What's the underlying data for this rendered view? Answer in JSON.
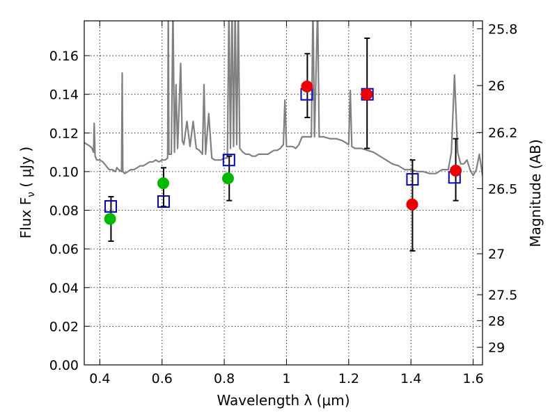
{
  "chart_data": {
    "type": "scatter",
    "xlabel": "Wavelength  λ (μm)",
    "ylabel": "Flux  F",
    "ylabel_sub": "ν",
    "ylabel_unit": "  ( μJy )",
    "y2label": "Magnitude (AB)",
    "xlim": [
      0.35,
      1.63
    ],
    "ylim": [
      0.0,
      0.178
    ],
    "xticks": [
      0.4,
      0.6,
      0.8,
      1.0,
      1.2,
      1.4,
      1.6
    ],
    "xtick_labels": [
      "0.4",
      "0.6",
      "0.8",
      "1",
      "1.2",
      "1.4",
      "1.6"
    ],
    "yticks": [
      0.0,
      0.02,
      0.04,
      0.06,
      0.08,
      0.1,
      0.12,
      0.14,
      0.16
    ],
    "ytick_labels": [
      "0.00",
      "0.02",
      "0.04",
      "0.06",
      "0.08",
      "0.10",
      "0.12",
      "0.14",
      "0.16"
    ],
    "y2ticks": [
      {
        "label": "25.8",
        "flux": 0.1739
      },
      {
        "label": "26",
        "flux": 0.1445
      },
      {
        "label": "26.2",
        "flux": 0.1202
      },
      {
        "label": "26.5",
        "flux": 0.0912
      },
      {
        "label": "27",
        "flux": 0.0575
      },
      {
        "label": "27.5",
        "flux": 0.0363
      },
      {
        "label": "28",
        "flux": 0.0229
      },
      {
        "label": "29",
        "flux": 0.0091
      }
    ],
    "grid": true,
    "colors": {
      "sed_line": "#808080",
      "model_square": "#0000cc",
      "green_point": "#00bb00",
      "red_point": "#ee0000",
      "errorbar": "#000000"
    },
    "series": [
      {
        "type": "line",
        "points": [
          [
            0.35,
            0.115
          ],
          [
            0.36,
            0.114
          ],
          [
            0.37,
            0.113
          ],
          [
            0.375,
            0.112
          ],
          [
            0.38,
            0.11
          ],
          [
            0.382,
            0.125
          ],
          [
            0.385,
            0.108
          ],
          [
            0.39,
            0.106
          ],
          [
            0.4,
            0.106
          ],
          [
            0.41,
            0.105
          ],
          [
            0.42,
            0.103
          ],
          [
            0.43,
            0.101
          ],
          [
            0.44,
            0.101
          ],
          [
            0.45,
            0.1
          ],
          [
            0.455,
            0.102
          ],
          [
            0.46,
            0.101
          ],
          [
            0.47,
            0.1
          ],
          [
            0.472,
            0.151
          ],
          [
            0.474,
            0.1
          ],
          [
            0.48,
            0.099
          ],
          [
            0.49,
            0.1
          ],
          [
            0.5,
            0.101
          ],
          [
            0.51,
            0.101
          ],
          [
            0.52,
            0.102
          ],
          [
            0.53,
            0.103
          ],
          [
            0.54,
            0.103
          ],
          [
            0.55,
            0.104
          ],
          [
            0.56,
            0.105
          ],
          [
            0.57,
            0.105
          ],
          [
            0.58,
            0.106
          ],
          [
            0.59,
            0.105
          ],
          [
            0.6,
            0.106
          ],
          [
            0.61,
            0.106
          ],
          [
            0.618,
            0.107
          ],
          [
            0.62,
            0.185
          ],
          [
            0.622,
            0.109
          ],
          [
            0.63,
            0.109
          ],
          [
            0.635,
            0.185
          ],
          [
            0.64,
            0.11
          ],
          [
            0.645,
            0.145
          ],
          [
            0.65,
            0.112
          ],
          [
            0.66,
            0.156
          ],
          [
            0.665,
            0.116
          ],
          [
            0.67,
            0.114
          ],
          [
            0.68,
            0.126
          ],
          [
            0.69,
            0.113
          ],
          [
            0.7,
            0.126
          ],
          [
            0.71,
            0.112
          ],
          [
            0.72,
            0.111
          ],
          [
            0.73,
            0.109
          ],
          [
            0.735,
            0.145
          ],
          [
            0.74,
            0.109
          ],
          [
            0.75,
            0.13
          ],
          [
            0.76,
            0.107
          ],
          [
            0.77,
            0.106
          ],
          [
            0.78,
            0.106
          ],
          [
            0.79,
            0.106
          ],
          [
            0.8,
            0.107
          ],
          [
            0.81,
            0.107
          ],
          [
            0.815,
            0.185
          ],
          [
            0.82,
            0.112
          ],
          [
            0.825,
            0.185
          ],
          [
            0.83,
            0.113
          ],
          [
            0.835,
            0.185
          ],
          [
            0.84,
            0.114
          ],
          [
            0.845,
            0.185
          ],
          [
            0.85,
            0.112
          ],
          [
            0.86,
            0.11
          ],
          [
            0.87,
            0.109
          ],
          [
            0.88,
            0.109
          ],
          [
            0.89,
            0.108
          ],
          [
            0.9,
            0.108
          ],
          [
            0.91,
            0.109
          ],
          [
            0.92,
            0.109
          ],
          [
            0.93,
            0.109
          ],
          [
            0.94,
            0.109
          ],
          [
            0.95,
            0.11
          ],
          [
            0.96,
            0.111
          ],
          [
            0.97,
            0.111
          ],
          [
            0.98,
            0.112
          ],
          [
            0.99,
            0.114
          ],
          [
            0.995,
            0.137
          ],
          [
            1.0,
            0.113
          ],
          [
            1.01,
            0.113
          ],
          [
            1.02,
            0.113
          ],
          [
            1.03,
            0.112
          ],
          [
            1.04,
            0.114
          ],
          [
            1.05,
            0.118
          ],
          [
            1.06,
            0.118
          ],
          [
            1.07,
            0.118
          ],
          [
            1.08,
            0.118
          ],
          [
            1.085,
            0.185
          ],
          [
            1.09,
            0.118
          ],
          [
            1.1,
            0.185
          ],
          [
            1.105,
            0.118
          ],
          [
            1.12,
            0.118
          ],
          [
            1.14,
            0.117
          ],
          [
            1.16,
            0.117
          ],
          [
            1.18,
            0.116
          ],
          [
            1.19,
            0.115
          ],
          [
            1.2,
            0.114
          ],
          [
            1.205,
            0.142
          ],
          [
            1.21,
            0.113
          ],
          [
            1.22,
            0.112
          ],
          [
            1.24,
            0.112
          ],
          [
            1.26,
            0.111
          ],
          [
            1.28,
            0.11
          ],
          [
            1.3,
            0.108
          ],
          [
            1.32,
            0.106
          ],
          [
            1.34,
            0.104
          ],
          [
            1.36,
            0.103
          ],
          [
            1.38,
            0.101
          ],
          [
            1.4,
            0.101
          ],
          [
            1.42,
            0.1
          ],
          [
            1.44,
            0.1
          ],
          [
            1.46,
            0.099
          ],
          [
            1.48,
            0.099
          ],
          [
            1.5,
            0.101
          ],
          [
            1.52,
            0.101
          ],
          [
            1.53,
            0.11
          ],
          [
            1.54,
            0.15
          ],
          [
            1.55,
            0.11
          ],
          [
            1.56,
            0.104
          ],
          [
            1.57,
            0.104
          ],
          [
            1.58,
            0.106
          ],
          [
            1.59,
            0.101
          ],
          [
            1.6,
            0.098
          ],
          [
            1.61,
            0.101
          ],
          [
            1.62,
            0.109
          ],
          [
            1.63,
            0.098
          ]
        ]
      },
      {
        "type": "scatter",
        "marker": "square",
        "points": [
          [
            0.435,
            0.082
          ],
          [
            0.605,
            0.0845
          ],
          [
            0.815,
            0.106
          ],
          [
            1.065,
            0.14
          ],
          [
            1.26,
            0.14
          ],
          [
            1.405,
            0.096
          ],
          [
            1.54,
            0.097
          ]
        ]
      },
      {
        "type": "scatter",
        "marker": "circle",
        "color": "green",
        "points": [
          [
            0.433,
            0.0755
          ],
          [
            0.604,
            0.094
          ],
          [
            0.812,
            0.0965
          ]
        ]
      },
      {
        "type": "scatter",
        "marker": "circle",
        "color": "red",
        "points": [
          [
            1.066,
            0.144
          ],
          [
            1.258,
            0.14
          ],
          [
            1.404,
            0.083
          ],
          [
            1.544,
            0.1005
          ]
        ]
      },
      {
        "type": "errorbar",
        "bars": [
          {
            "x": 0.436,
            "low": 0.064,
            "high": 0.087
          },
          {
            "x": 0.605,
            "low": 0.082,
            "high": 0.102
          },
          {
            "x": 0.816,
            "low": 0.085,
            "high": 0.108
          },
          {
            "x": 1.067,
            "low": 0.128,
            "high": 0.161
          },
          {
            "x": 1.259,
            "low": 0.112,
            "high": 0.169
          },
          {
            "x": 1.405,
            "low": 0.059,
            "high": 0.106
          },
          {
            "x": 1.544,
            "low": 0.085,
            "high": 0.117
          }
        ]
      }
    ]
  }
}
